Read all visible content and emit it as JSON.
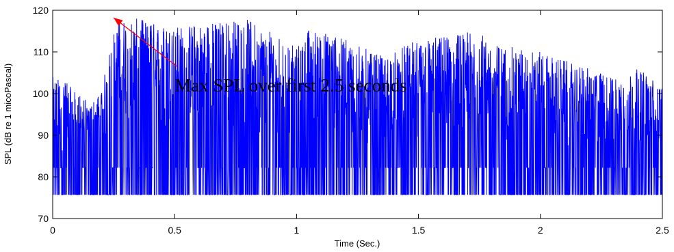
{
  "chart_data": {
    "type": "line",
    "title": "",
    "xlabel": "Time (Sec.)",
    "ylabel": "SPL (dB re 1 micoPascal)",
    "xlim": [
      0,
      2.5
    ],
    "ylim": [
      70,
      120
    ],
    "x_ticks": [
      0,
      0.5,
      1,
      1.5,
      2,
      2.5
    ],
    "x_tick_labels": [
      "0",
      "0.5",
      "1",
      "1.5",
      "2",
      "2.5"
    ],
    "y_ticks": [
      70,
      80,
      90,
      100,
      110,
      120
    ],
    "y_tick_labels": [
      "70",
      "80",
      "90",
      "100",
      "110",
      "120"
    ],
    "grid": false,
    "series": [
      {
        "color": "#0000ff",
        "noise_floor_db": 75.7,
        "envelope": {
          "t": [
            0,
            0.05,
            0.1,
            0.15,
            0.2,
            0.22,
            0.25,
            0.28,
            0.35,
            0.5,
            0.6,
            0.8,
            0.95,
            1.0,
            1.05,
            1.2,
            1.35,
            1.5,
            1.6,
            1.75,
            1.8,
            2.0,
            2.1,
            2.3,
            2.4,
            2.5
          ],
          "peak_db": [
            104,
            103,
            100,
            98,
            100,
            107,
            115,
            118,
            118,
            116,
            117,
            118,
            113,
            111,
            116,
            113,
            109,
            113,
            114,
            115,
            112,
            110,
            108,
            104,
            106,
            102
          ]
        }
      }
    ],
    "annotations": [
      {
        "text": "Max SPL over first 2.5 seconds",
        "text_anchor": [
          0.5,
          102
        ],
        "arrow_from": [
          0.51,
          106.5
        ],
        "arrow_to": [
          0.25,
          118.2
        ],
        "arrow_color": "#ff0000"
      }
    ]
  }
}
